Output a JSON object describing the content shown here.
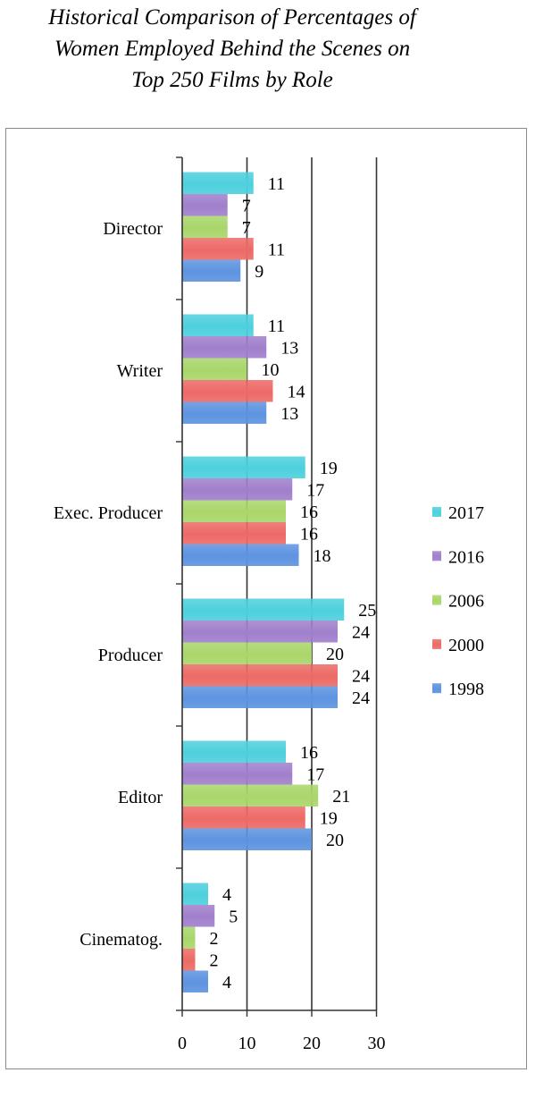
{
  "chart_data": {
    "type": "bar",
    "orientation": "horizontal",
    "title_lines": [
      "Historical Comparison of Percentages of",
      "Women Employed Behind the Scenes on",
      "Top 250 Films by Role"
    ],
    "categories": [
      "Director",
      "Writer",
      "Exec. Producer",
      "Producer",
      "Editor",
      "Cinematog."
    ],
    "series": [
      {
        "name": "2017",
        "color": "#4dd0dd",
        "values": [
          11,
          11,
          19,
          25,
          16,
          4
        ]
      },
      {
        "name": "2016",
        "color": "#a07fcc",
        "values": [
          7,
          13,
          17,
          24,
          17,
          5
        ]
      },
      {
        "name": "2006",
        "color": "#a9d66a",
        "values": [
          7,
          10,
          16,
          20,
          21,
          2
        ]
      },
      {
        "name": "2000",
        "color": "#ec6a66",
        "values": [
          11,
          14,
          16,
          24,
          19,
          2
        ]
      },
      {
        "name": "1998",
        "color": "#5d93e0",
        "values": [
          9,
          13,
          18,
          24,
          20,
          4
        ]
      }
    ],
    "xlim": [
      0,
      30
    ],
    "xticks": [
      0,
      10,
      20,
      30
    ],
    "grid": "vertical",
    "legend": "right"
  }
}
